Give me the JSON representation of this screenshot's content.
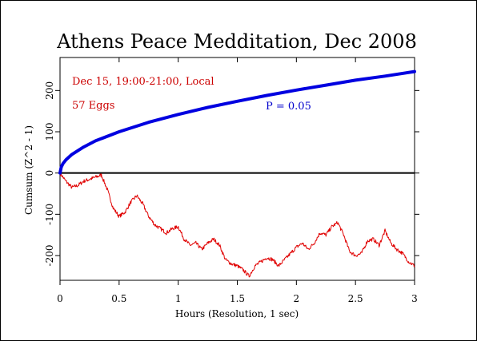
{
  "chart_data": {
    "type": "line",
    "title": "Athens Peace Medditation, Dec 2008",
    "xlabel": "Hours (Resolution, 1 sec)",
    "ylabel": "Cumsum (Z^2 - 1)",
    "xlim": [
      0,
      3
    ],
    "ylim": [
      -260,
      280
    ],
    "x_ticks": [
      0,
      0.5,
      1,
      1.5,
      2,
      2.5,
      3
    ],
    "x_tick_labels": [
      "0",
      "0.5",
      "1",
      "1.5",
      "2",
      "2.5",
      "3"
    ],
    "y_ticks": [
      -200,
      -100,
      0,
      100,
      200
    ],
    "y_tick_labels": [
      "-200",
      "-100",
      "0",
      "100",
      "200"
    ],
    "annotations": {
      "date": "Dec 15, 19:00-21:00, Local",
      "eggs": "57 Eggs",
      "p_value": "P = 0.05"
    },
    "colors": {
      "data_series": "#e00000",
      "p_envelope": "#0000e0",
      "zero_line": "#000000",
      "annotation_red": "#cc0000",
      "annotation_blue": "#0000cc"
    },
    "series": [
      {
        "role": "cumulative-deviation",
        "color": "#e00000",
        "x": [
          0,
          0.05,
          0.1,
          0.15,
          0.2,
          0.25,
          0.3,
          0.35,
          0.4,
          0.45,
          0.5,
          0.55,
          0.6,
          0.65,
          0.7,
          0.75,
          0.8,
          0.85,
          0.9,
          0.95,
          1.0,
          1.05,
          1.1,
          1.15,
          1.2,
          1.25,
          1.3,
          1.35,
          1.4,
          1.45,
          1.5,
          1.55,
          1.6,
          1.65,
          1.7,
          1.75,
          1.8,
          1.85,
          1.9,
          1.95,
          2.0,
          2.05,
          2.1,
          2.15,
          2.2,
          2.25,
          2.3,
          2.35,
          2.4,
          2.45,
          2.5,
          2.55,
          2.6,
          2.65,
          2.7,
          2.75,
          2.8,
          2.85,
          2.9,
          2.95,
          3.0
        ],
        "values": [
          0,
          -20,
          -35,
          -30,
          -20,
          -15,
          -10,
          -5,
          -40,
          -85,
          -105,
          -95,
          -70,
          -55,
          -75,
          -105,
          -125,
          -135,
          -145,
          -135,
          -130,
          -160,
          -175,
          -170,
          -185,
          -170,
          -160,
          -175,
          -210,
          -220,
          -225,
          -235,
          -250,
          -225,
          -215,
          -205,
          -210,
          -225,
          -210,
          -195,
          -180,
          -170,
          -185,
          -170,
          -145,
          -150,
          -130,
          -120,
          -150,
          -190,
          -200,
          -195,
          -165,
          -160,
          -175,
          -140,
          -170,
          -185,
          -195,
          -215,
          -225
        ]
      },
      {
        "role": "p-0.05-envelope",
        "label": "P = 0.05",
        "color": "#0000e0",
        "x": [
          0,
          0.01,
          0.025,
          0.05,
          0.1,
          0.2,
          0.3,
          0.5,
          0.75,
          1.0,
          1.25,
          1.5,
          1.75,
          2.0,
          2.25,
          2.5,
          2.75,
          3.0
        ],
        "values": [
          0,
          14,
          23,
          32,
          45,
          63,
          78,
          100,
          123,
          142,
          159,
          174,
          188,
          201,
          213,
          225,
          235,
          246
        ]
      }
    ]
  }
}
